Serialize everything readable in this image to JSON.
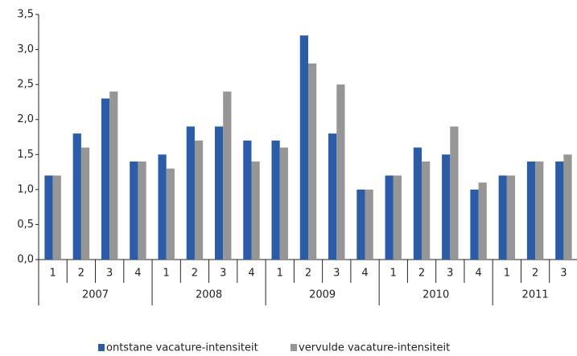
{
  "chart_data": {
    "type": "bar",
    "categories": [
      "1",
      "2",
      "3",
      "4",
      "1",
      "2",
      "3",
      "4",
      "1",
      "2",
      "3",
      "4",
      "1",
      "2",
      "3",
      "4",
      "1",
      "2",
      "3"
    ],
    "year_groups": [
      "2007",
      "2008",
      "2009",
      "2010",
      "2011"
    ],
    "series": [
      {
        "name": "ontstane vacature-intensiteit",
        "color": "#2a5ca8",
        "values": [
          1.2,
          1.8,
          2.3,
          1.4,
          1.5,
          1.9,
          1.9,
          1.7,
          1.7,
          3.2,
          1.8,
          1.0,
          1.2,
          1.6,
          1.5,
          1.0,
          1.2,
          1.4,
          1.4
        ]
      },
      {
        "name": "vervulde vacature-intensiteit",
        "color": "#969696",
        "values": [
          1.2,
          1.6,
          2.4,
          1.4,
          1.3,
          1.7,
          2.4,
          1.4,
          1.6,
          2.8,
          2.5,
          1.0,
          1.2,
          1.4,
          1.9,
          1.1,
          1.2,
          1.4,
          1.5
        ]
      }
    ],
    "ylim": [
      0,
      3.5
    ],
    "yticks": [
      {
        "value": 0,
        "label": "0,0"
      },
      {
        "value": 0.5,
        "label": "0,5"
      },
      {
        "value": 1,
        "label": "1,0"
      },
      {
        "value": 1.5,
        "label": "1,5"
      },
      {
        "value": 2,
        "label": "2,0"
      },
      {
        "value": 2.5,
        "label": "2,5"
      },
      {
        "value": 3,
        "label": "3,0"
      },
      {
        "value": 3.5,
        "label": "3,5"
      }
    ],
    "legend": "bottom"
  }
}
